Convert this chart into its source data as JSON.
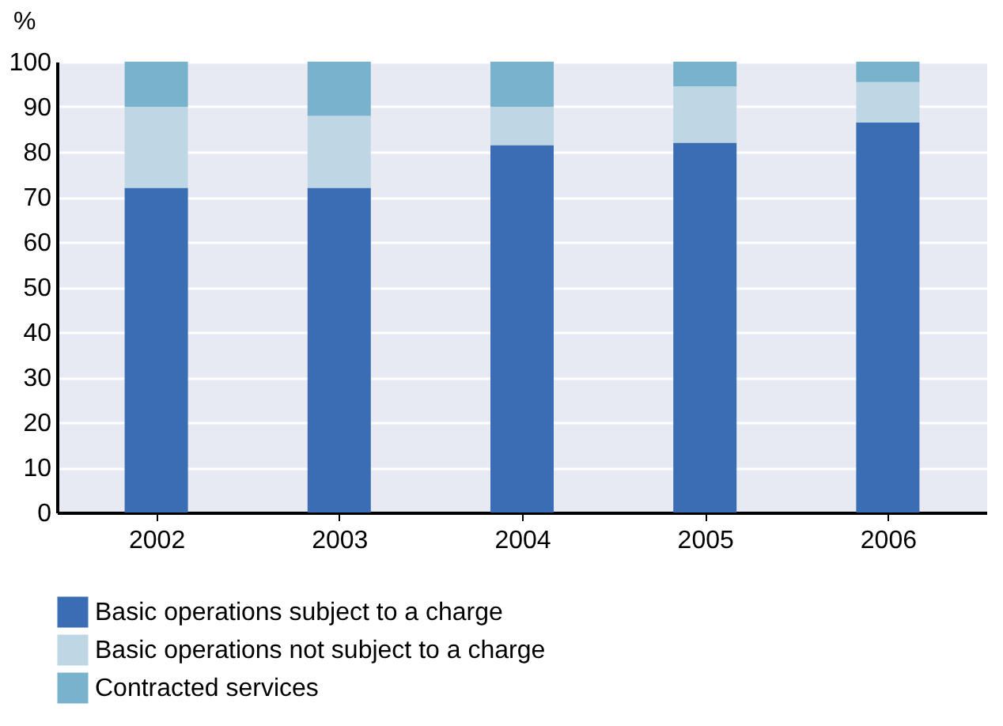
{
  "chart_data": {
    "type": "bar",
    "stacked": true,
    "ylabel": "%",
    "categories": [
      "2002",
      "2003",
      "2004",
      "2005",
      "2006"
    ],
    "series": [
      {
        "name": "Basic operations subject to a charge",
        "color": "#3a6db3",
        "values": [
          72,
          72,
          81.5,
          82,
          86.5
        ]
      },
      {
        "name": "Basic operations not subject to a charge",
        "color": "#bfd7e4",
        "values": [
          18,
          16,
          8.5,
          12.5,
          9
        ]
      },
      {
        "name": "Contracted services",
        "color": "#78b2cd",
        "values": [
          10,
          12,
          10,
          5.5,
          4.5
        ]
      }
    ],
    "ylim": [
      0,
      100
    ],
    "yticks": [
      0,
      10,
      20,
      30,
      40,
      50,
      60,
      70,
      80,
      90,
      100
    ],
    "grid": "y",
    "legend": "bottom left"
  }
}
